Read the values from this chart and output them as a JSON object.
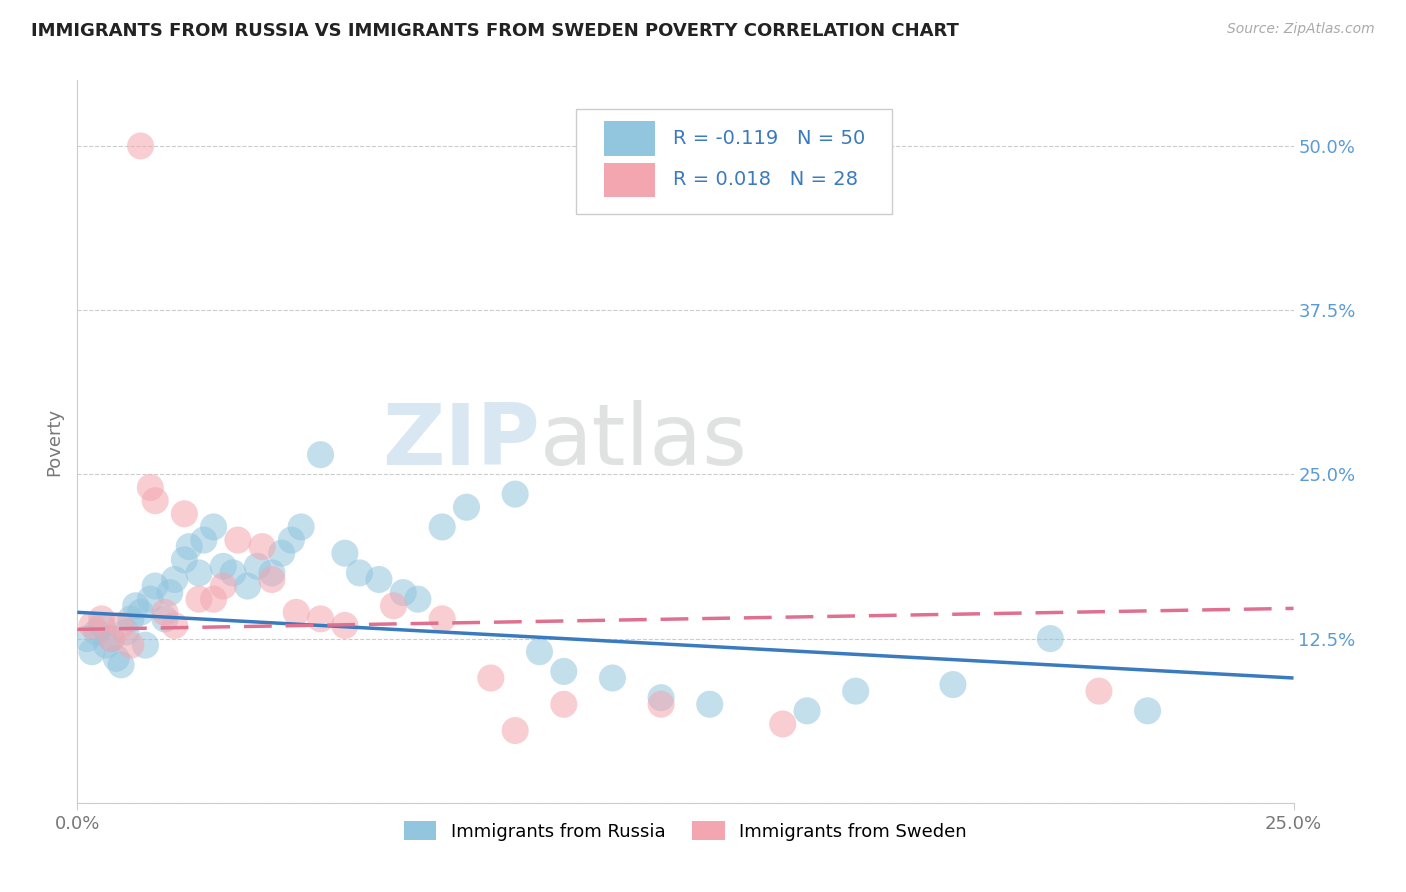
{
  "title": "IMMIGRANTS FROM RUSSIA VS IMMIGRANTS FROM SWEDEN POVERTY CORRELATION CHART",
  "source": "Source: ZipAtlas.com",
  "ylabel": "Poverty",
  "xmin": 0.0,
  "xmax": 0.25,
  "ymin": 0.0,
  "ymax": 0.55,
  "yticks": [
    0.0,
    0.125,
    0.25,
    0.375,
    0.5
  ],
  "ytick_labels": [
    "",
    "12.5%",
    "25.0%",
    "37.5%",
    "50.0%"
  ],
  "xticks": [
    0.0,
    0.25
  ],
  "xtick_labels": [
    "0.0%",
    "25.0%"
  ],
  "legend_bottom_labels": [
    "Immigrants from Russia",
    "Immigrants from Sweden"
  ],
  "russia_R": "-0.119",
  "russia_N": "50",
  "sweden_R": "0.018",
  "sweden_N": "28",
  "blue_color": "#92c5de",
  "pink_color": "#f4a6b0",
  "blue_line_color": "#3a7abf",
  "pink_line_color": "#e07090",
  "russia_line_x0": 0.0,
  "russia_line_y0": 0.145,
  "russia_line_x1": 0.25,
  "russia_line_y1": 0.095,
  "sweden_line_x0": 0.0,
  "sweden_line_y0": 0.132,
  "sweden_line_x1": 0.25,
  "sweden_line_y1": 0.148,
  "russia_points_x": [
    0.002,
    0.003,
    0.004,
    0.005,
    0.006,
    0.007,
    0.008,
    0.009,
    0.01,
    0.011,
    0.012,
    0.013,
    0.014,
    0.015,
    0.016,
    0.018,
    0.019,
    0.02,
    0.022,
    0.023,
    0.025,
    0.026,
    0.028,
    0.03,
    0.032,
    0.035,
    0.037,
    0.04,
    0.042,
    0.044,
    0.046,
    0.05,
    0.055,
    0.058,
    0.062,
    0.067,
    0.07,
    0.075,
    0.08,
    0.09,
    0.095,
    0.1,
    0.11,
    0.12,
    0.13,
    0.15,
    0.16,
    0.18,
    0.2,
    0.22
  ],
  "russia_points_y": [
    0.125,
    0.115,
    0.13,
    0.135,
    0.12,
    0.125,
    0.11,
    0.105,
    0.13,
    0.14,
    0.15,
    0.145,
    0.12,
    0.155,
    0.165,
    0.14,
    0.16,
    0.17,
    0.185,
    0.195,
    0.175,
    0.2,
    0.21,
    0.18,
    0.175,
    0.165,
    0.18,
    0.175,
    0.19,
    0.2,
    0.21,
    0.265,
    0.19,
    0.175,
    0.17,
    0.16,
    0.155,
    0.21,
    0.225,
    0.235,
    0.115,
    0.1,
    0.095,
    0.08,
    0.075,
    0.07,
    0.085,
    0.09,
    0.125,
    0.07
  ],
  "sweden_points_x": [
    0.003,
    0.005,
    0.007,
    0.009,
    0.011,
    0.013,
    0.015,
    0.016,
    0.018,
    0.02,
    0.022,
    0.025,
    0.028,
    0.03,
    0.033,
    0.038,
    0.04,
    0.045,
    0.05,
    0.055,
    0.065,
    0.075,
    0.085,
    0.09,
    0.1,
    0.12,
    0.145,
    0.21
  ],
  "sweden_points_y": [
    0.135,
    0.14,
    0.125,
    0.135,
    0.12,
    0.5,
    0.24,
    0.23,
    0.145,
    0.135,
    0.22,
    0.155,
    0.155,
    0.165,
    0.2,
    0.195,
    0.17,
    0.145,
    0.14,
    0.135,
    0.15,
    0.14,
    0.095,
    0.055,
    0.075,
    0.075,
    0.06,
    0.085
  ],
  "background_color": "#ffffff",
  "grid_color": "#cccccc",
  "watermark_color": "#d8e8f0"
}
